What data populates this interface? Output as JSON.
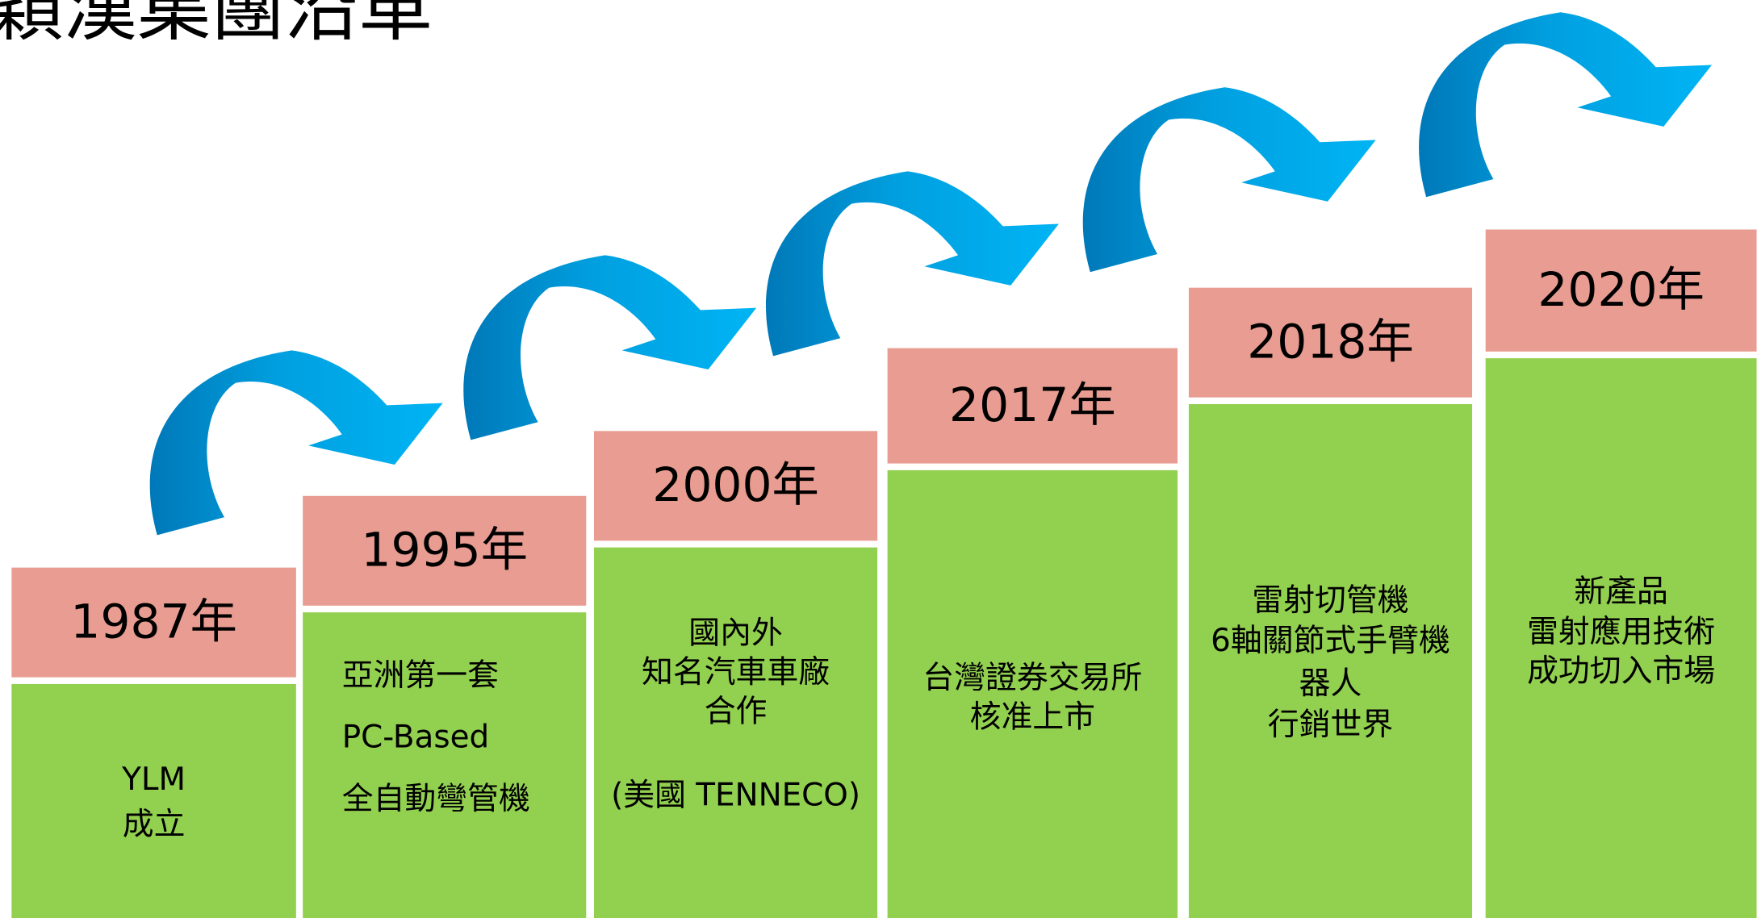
{
  "title": "穎漢集團沿革",
  "steps": [
    {
      "year": "1987年",
      "lines": [
        "YLM",
        "成立"
      ]
    },
    {
      "year": "1995年",
      "lines": [
        "亞洲第一套",
        "PC-Based",
        "全自動彎管機"
      ]
    },
    {
      "year": "2000年",
      "lines": [
        "國內外",
        "知名汽車車廠",
        "合作",
        "(美國 TENNECO)"
      ]
    },
    {
      "year": "2017年",
      "lines": [
        "台灣證券交易所",
        "核准上市"
      ]
    },
    {
      "year": "2018年",
      "lines": [
        "雷射切管機",
        "6軸關節式手臂機",
        "器人",
        "行銷世界"
      ]
    },
    {
      "year": "2020年",
      "lines": [
        "新產品",
        "雷射應用技術",
        "成功切入市場"
      ]
    }
  ]
}
